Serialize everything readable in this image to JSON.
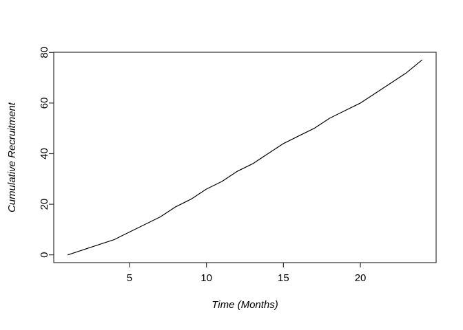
{
  "chart_data": {
    "type": "line",
    "title": "",
    "xlabel": "Time (Months)",
    "ylabel": "Cumulative Recruitment",
    "x": [
      1,
      2,
      3,
      4,
      5,
      6,
      7,
      8,
      9,
      10,
      11,
      12,
      13,
      14,
      15,
      16,
      17,
      18,
      19,
      20,
      21,
      22,
      23,
      24
    ],
    "series": [
      {
        "name": "cumulative-recruitment",
        "values": [
          0,
          2,
          4,
          6,
          9,
          12,
          15,
          19,
          22,
          26,
          29,
          33,
          36,
          40,
          44,
          47,
          50,
          54,
          57,
          60,
          64,
          68,
          72,
          77
        ]
      }
    ],
    "x_ticks": [
      5,
      10,
      15,
      20
    ],
    "y_ticks": [
      0,
      20,
      40,
      60,
      80
    ],
    "xlim": [
      1,
      24
    ],
    "ylim": [
      0,
      77
    ],
    "x_range_usr": [
      0.08,
      24.92
    ],
    "y_range_usr": [
      -3.08,
      80.08
    ],
    "grid": false,
    "legend_position": "none",
    "line_color": "#000000",
    "axis_color": "#333333",
    "background_color": "#ffffff"
  }
}
